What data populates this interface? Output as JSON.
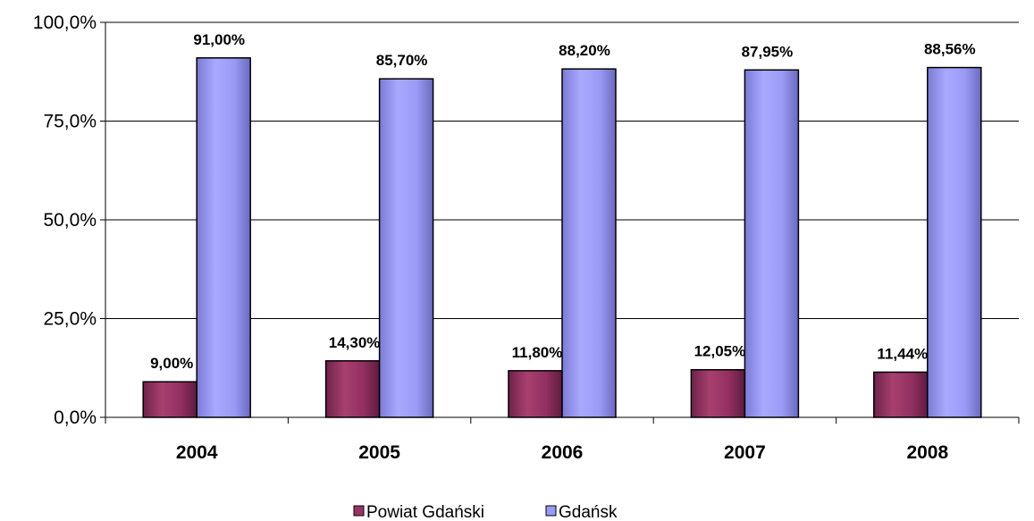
{
  "chart_data": {
    "type": "bar",
    "categories": [
      "2004",
      "2005",
      "2006",
      "2007",
      "2008"
    ],
    "series": [
      {
        "name": "Powiat Gdański",
        "values": [
          9.0,
          14.3,
          11.8,
          12.05,
          11.44
        ],
        "labels": [
          "9,00%",
          "14,30%",
          "11,80%",
          "12,05%",
          "11,44%"
        ],
        "color": "#993366"
      },
      {
        "name": "Gdańsk",
        "values": [
          91.0,
          85.7,
          88.2,
          87.95,
          88.56
        ],
        "labels": [
          "91,00%",
          "85,70%",
          "88,20%",
          "87,95%",
          "88,56%"
        ],
        "color": "#9999ff"
      }
    ],
    "ylim": [
      0,
      100
    ],
    "yticks": [
      0,
      25,
      50,
      75,
      100
    ],
    "ytick_labels": [
      "0,0%",
      "25,0%",
      "50,0%",
      "75,0%",
      "100,0%"
    ],
    "title": "",
    "xlabel": "",
    "ylabel": "",
    "grid": true,
    "legend_position": "bottom"
  }
}
